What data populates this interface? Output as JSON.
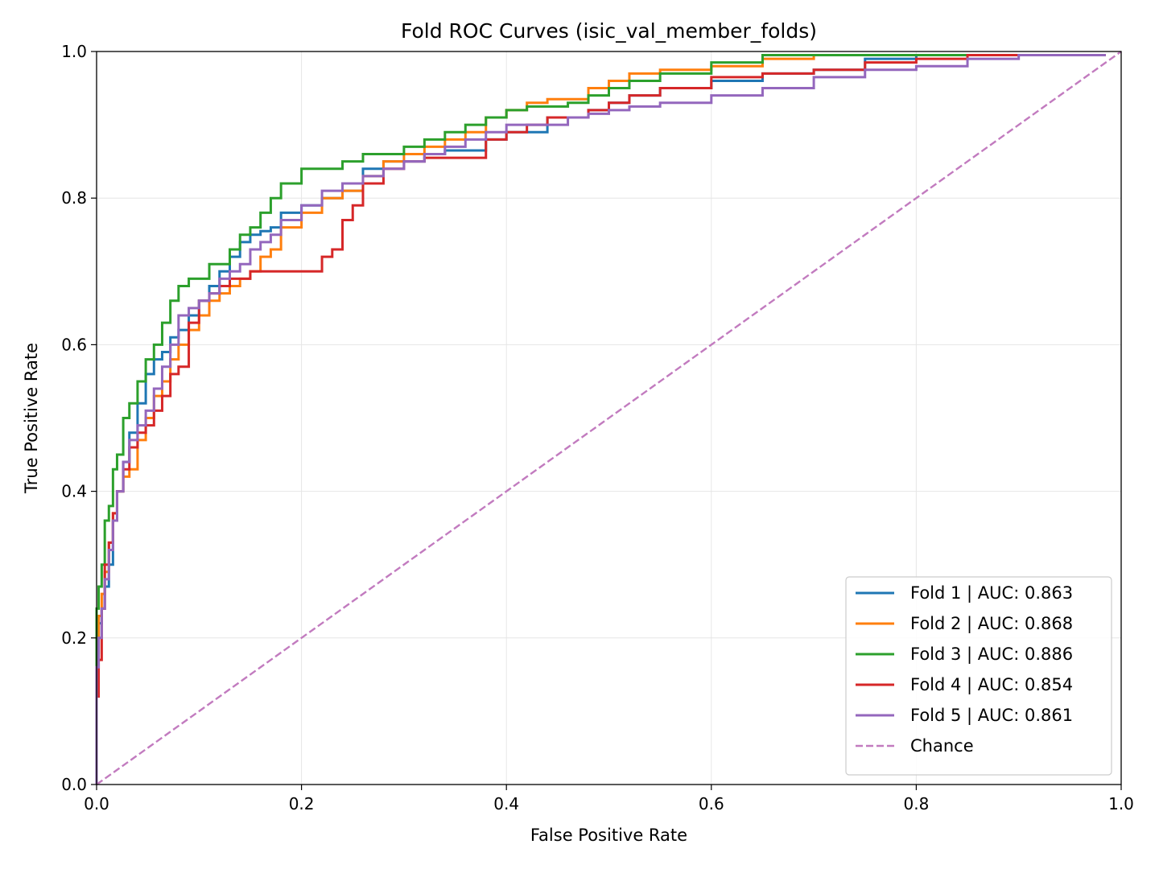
{
  "chart_data": {
    "type": "line",
    "title": "Fold ROC Curves (isic_val_member_folds)",
    "xlabel": "False Positive Rate",
    "ylabel": "True Positive Rate",
    "xlim": [
      0,
      1
    ],
    "ylim": [
      0,
      1
    ],
    "xticks": [
      "0.0",
      "0.2",
      "0.4",
      "0.6",
      "0.8",
      "1.0"
    ],
    "yticks": [
      "0.0",
      "0.2",
      "0.4",
      "0.6",
      "0.8",
      "1.0"
    ],
    "grid": true,
    "legend_position": "lower-right",
    "series": [
      {
        "name": "Fold 1 | AUC: 0.863",
        "color": "#1f77b4",
        "style": "solid",
        "x": [
          0,
          0.002,
          0.005,
          0.008,
          0.012,
          0.016,
          0.02,
          0.026,
          0.032,
          0.04,
          0.048,
          0.056,
          0.064,
          0.072,
          0.08,
          0.09,
          0.1,
          0.11,
          0.12,
          0.13,
          0.14,
          0.15,
          0.16,
          0.17,
          0.18,
          0.2,
          0.22,
          0.24,
          0.26,
          0.28,
          0.3,
          0.32,
          0.34,
          0.36,
          0.38,
          0.4,
          0.42,
          0.44,
          0.46,
          0.48,
          0.5,
          0.52,
          0.55,
          0.6,
          0.65,
          0.7,
          0.75,
          0.8,
          0.85,
          0.9,
          0.95,
          0.985
        ],
        "y": [
          0.0,
          0.18,
          0.22,
          0.24,
          0.27,
          0.3,
          0.36,
          0.4,
          0.44,
          0.48,
          0.52,
          0.56,
          0.58,
          0.59,
          0.61,
          0.62,
          0.64,
          0.66,
          0.68,
          0.7,
          0.72,
          0.74,
          0.75,
          0.755,
          0.76,
          0.78,
          0.79,
          0.8,
          0.81,
          0.84,
          0.85,
          0.85,
          0.86,
          0.865,
          0.865,
          0.88,
          0.89,
          0.89,
          0.91,
          0.91,
          0.92,
          0.93,
          0.94,
          0.95,
          0.96,
          0.97,
          0.975,
          0.99,
          0.995,
          0.995,
          0.995,
          0.995
        ]
      },
      {
        "name": "Fold 2 | AUC: 0.868",
        "color": "#ff7f0e",
        "style": "solid",
        "x": [
          0,
          0.002,
          0.005,
          0.008,
          0.012,
          0.016,
          0.02,
          0.026,
          0.032,
          0.04,
          0.048,
          0.056,
          0.064,
          0.072,
          0.08,
          0.09,
          0.1,
          0.11,
          0.12,
          0.13,
          0.14,
          0.15,
          0.16,
          0.17,
          0.18,
          0.2,
          0.22,
          0.24,
          0.26,
          0.28,
          0.3,
          0.32,
          0.34,
          0.36,
          0.38,
          0.4,
          0.42,
          0.44,
          0.46,
          0.48,
          0.5,
          0.52,
          0.55,
          0.6,
          0.65,
          0.7,
          0.72,
          0.75,
          0.8,
          0.85,
          0.9,
          0.95,
          0.985
        ],
        "y": [
          0.0,
          0.2,
          0.23,
          0.26,
          0.29,
          0.33,
          0.37,
          0.4,
          0.42,
          0.43,
          0.47,
          0.5,
          0.53,
          0.55,
          0.58,
          0.6,
          0.62,
          0.64,
          0.66,
          0.67,
          0.68,
          0.69,
          0.7,
          0.72,
          0.73,
          0.76,
          0.78,
          0.8,
          0.81,
          0.83,
          0.85,
          0.86,
          0.87,
          0.88,
          0.89,
          0.91,
          0.92,
          0.93,
          0.935,
          0.935,
          0.95,
          0.96,
          0.97,
          0.975,
          0.98,
          0.99,
          0.995,
          0.995,
          0.995,
          0.995,
          0.995,
          0.995,
          0.995
        ]
      },
      {
        "name": "Fold 3 | AUC: 0.886",
        "color": "#2ca02c",
        "style": "solid",
        "x": [
          0,
          0.002,
          0.005,
          0.008,
          0.012,
          0.016,
          0.02,
          0.026,
          0.032,
          0.04,
          0.048,
          0.056,
          0.064,
          0.072,
          0.08,
          0.09,
          0.1,
          0.11,
          0.12,
          0.13,
          0.14,
          0.15,
          0.16,
          0.17,
          0.18,
          0.2,
          0.22,
          0.24,
          0.26,
          0.28,
          0.3,
          0.32,
          0.34,
          0.36,
          0.38,
          0.4,
          0.42,
          0.44,
          0.46,
          0.48,
          0.5,
          0.52,
          0.55,
          0.6,
          0.65,
          0.7,
          0.75,
          0.8,
          0.85,
          0.9,
          0.95,
          0.985
        ],
        "y": [
          0.0,
          0.24,
          0.27,
          0.3,
          0.36,
          0.38,
          0.43,
          0.45,
          0.5,
          0.52,
          0.55,
          0.58,
          0.6,
          0.63,
          0.66,
          0.68,
          0.69,
          0.69,
          0.71,
          0.71,
          0.73,
          0.75,
          0.76,
          0.78,
          0.8,
          0.82,
          0.84,
          0.84,
          0.85,
          0.86,
          0.86,
          0.87,
          0.88,
          0.89,
          0.9,
          0.91,
          0.92,
          0.925,
          0.925,
          0.93,
          0.94,
          0.95,
          0.96,
          0.97,
          0.985,
          0.995,
          0.995,
          0.995,
          0.995,
          0.995,
          0.995,
          0.995
        ]
      },
      {
        "name": "Fold 4 | AUC: 0.854",
        "color": "#d62728",
        "style": "solid",
        "x": [
          0,
          0.002,
          0.005,
          0.008,
          0.012,
          0.016,
          0.02,
          0.026,
          0.032,
          0.04,
          0.048,
          0.056,
          0.064,
          0.072,
          0.08,
          0.09,
          0.1,
          0.11,
          0.12,
          0.13,
          0.14,
          0.15,
          0.16,
          0.17,
          0.18,
          0.2,
          0.22,
          0.23,
          0.24,
          0.25,
          0.26,
          0.28,
          0.3,
          0.32,
          0.34,
          0.36,
          0.38,
          0.4,
          0.42,
          0.44,
          0.46,
          0.48,
          0.5,
          0.52,
          0.55,
          0.6,
          0.65,
          0.7,
          0.75,
          0.8,
          0.85,
          0.9,
          0.95,
          0.985
        ],
        "y": [
          0.0,
          0.12,
          0.17,
          0.24,
          0.3,
          0.33,
          0.37,
          0.4,
          0.43,
          0.46,
          0.48,
          0.49,
          0.51,
          0.53,
          0.56,
          0.57,
          0.63,
          0.66,
          0.67,
          0.68,
          0.69,
          0.69,
          0.7,
          0.7,
          0.7,
          0.7,
          0.7,
          0.72,
          0.73,
          0.77,
          0.79,
          0.82,
          0.84,
          0.85,
          0.855,
          0.855,
          0.855,
          0.88,
          0.89,
          0.9,
          0.91,
          0.91,
          0.92,
          0.93,
          0.94,
          0.95,
          0.965,
          0.97,
          0.975,
          0.985,
          0.99,
          0.995,
          0.995,
          0.995
        ]
      },
      {
        "name": "Fold 5 | AUC: 0.861",
        "color": "#9467bd",
        "style": "solid",
        "x": [
          0,
          0.002,
          0.005,
          0.008,
          0.012,
          0.016,
          0.02,
          0.026,
          0.032,
          0.04,
          0.048,
          0.056,
          0.064,
          0.072,
          0.08,
          0.09,
          0.1,
          0.11,
          0.12,
          0.13,
          0.14,
          0.15,
          0.16,
          0.17,
          0.18,
          0.2,
          0.22,
          0.24,
          0.26,
          0.28,
          0.3,
          0.32,
          0.34,
          0.36,
          0.38,
          0.4,
          0.42,
          0.44,
          0.46,
          0.48,
          0.5,
          0.52,
          0.55,
          0.6,
          0.65,
          0.7,
          0.75,
          0.8,
          0.85,
          0.9,
          0.95,
          0.985
        ],
        "y": [
          0.0,
          0.16,
          0.2,
          0.24,
          0.28,
          0.32,
          0.36,
          0.4,
          0.44,
          0.47,
          0.49,
          0.51,
          0.54,
          0.57,
          0.6,
          0.64,
          0.65,
          0.66,
          0.67,
          0.69,
          0.7,
          0.71,
          0.73,
          0.74,
          0.75,
          0.77,
          0.79,
          0.81,
          0.82,
          0.83,
          0.84,
          0.85,
          0.86,
          0.87,
          0.88,
          0.89,
          0.9,
          0.9,
          0.9,
          0.91,
          0.915,
          0.92,
          0.925,
          0.93,
          0.94,
          0.95,
          0.965,
          0.975,
          0.98,
          0.99,
          0.995,
          0.995
        ]
      },
      {
        "name": "Chance",
        "color": "#c27bbf",
        "style": "dashed",
        "x": [
          0,
          1
        ],
        "y": [
          0,
          1
        ]
      }
    ]
  }
}
